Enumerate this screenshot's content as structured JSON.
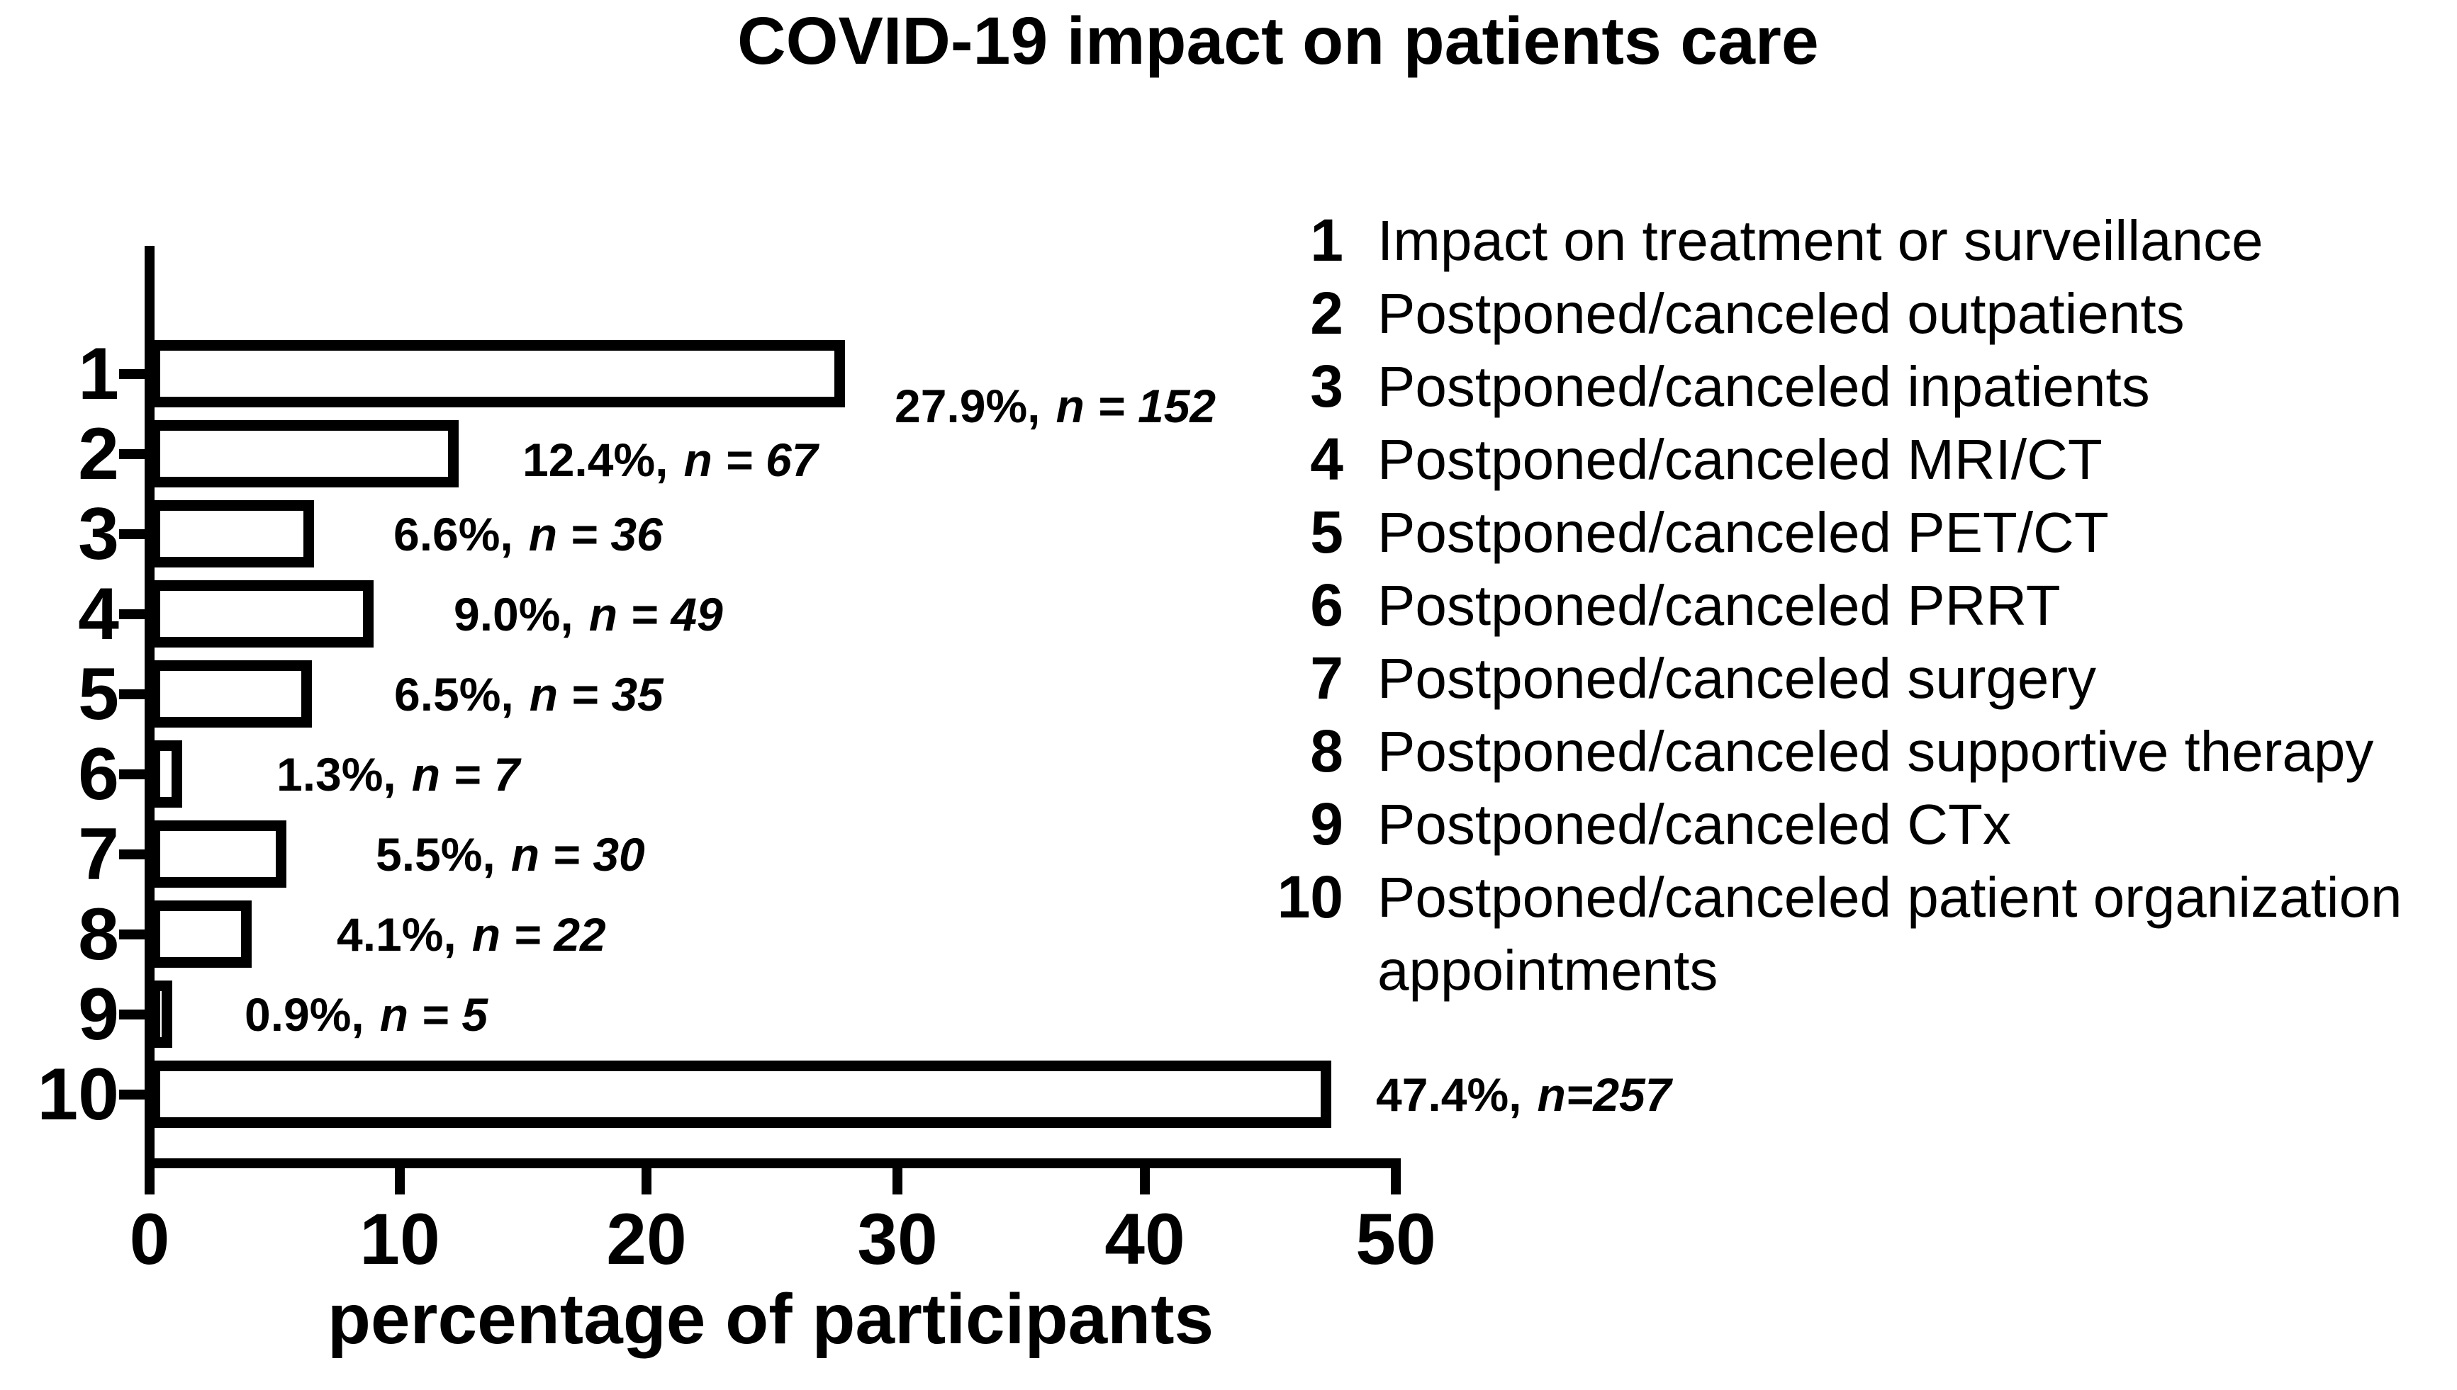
{
  "title": "COVID-19 impact on patients care",
  "chart_data": {
    "type": "bar",
    "orientation": "horizontal",
    "title": "COVID-19 impact on patients care",
    "xlabel": "percentage of participants",
    "xlim": [
      0,
      50
    ],
    "x_ticks": [
      "0",
      "10",
      "20",
      "30",
      "40",
      "50"
    ],
    "grid": false,
    "legend_position": "right",
    "categories": [
      "1",
      "2",
      "3",
      "4",
      "5",
      "6",
      "7",
      "8",
      "9",
      "10"
    ],
    "values": [
      27.9,
      12.4,
      6.6,
      9.0,
      6.5,
      1.3,
      5.5,
      4.1,
      0.9,
      47.4
    ],
    "n_counts": [
      152,
      67,
      36,
      49,
      35,
      7,
      30,
      22,
      5,
      257
    ],
    "annotations": [
      {
        "pct": "27.9%,",
        "n": "n = 152"
      },
      {
        "pct": "12.4%,",
        "n": "n = 67"
      },
      {
        "pct": "6.6%,",
        "n": "n = 36"
      },
      {
        "pct": "9.0%,",
        "n": "n = 49"
      },
      {
        "pct": "6.5%,",
        "n": "n = 35"
      },
      {
        "pct": "1.3%,",
        "n": "n = 7"
      },
      {
        "pct": "5.5%,",
        "n": "n = 30"
      },
      {
        "pct": "4.1%,",
        "n": "n = 22"
      },
      {
        "pct": "0.9%,",
        "n": "n = 5"
      },
      {
        "pct": "47.4%,",
        "n": "n=257"
      }
    ],
    "legend": [
      {
        "num": "1",
        "lines": [
          "Impact on treatment or surveillance"
        ]
      },
      {
        "num": "2",
        "lines": [
          "Postponed/canceled outpatients"
        ]
      },
      {
        "num": "3",
        "lines": [
          "Postponed/canceled inpatients"
        ]
      },
      {
        "num": "4",
        "lines": [
          "Postponed/canceled MRI/CT"
        ]
      },
      {
        "num": "5",
        "lines": [
          "Postponed/canceled PET/CT"
        ]
      },
      {
        "num": "6",
        "lines": [
          "Postponed/canceled PRRT"
        ]
      },
      {
        "num": "7",
        "lines": [
          "Postponed/canceled surgery"
        ]
      },
      {
        "num": "8",
        "lines": [
          "Postponed/canceled supportive therapy"
        ]
      },
      {
        "num": "9",
        "lines": [
          "Postponed/canceled CTx"
        ]
      },
      {
        "num": "10",
        "lines": [
          "Postponed/canceled patient organization",
          "appointments"
        ]
      }
    ],
    "colors": {
      "background": "#ffffff",
      "bar_fill": "#ffffff",
      "bar_border": "#000000",
      "axis": "#000000",
      "text": "#000000"
    }
  }
}
